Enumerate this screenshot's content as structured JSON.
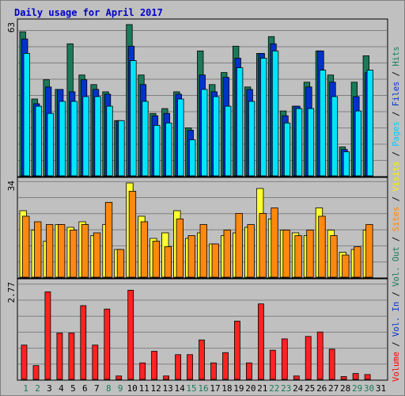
{
  "chart_data": {
    "type": "bar",
    "title": "Daily usage for April 2017",
    "categories": [
      "1",
      "2",
      "3",
      "4",
      "5",
      "6",
      "7",
      "8",
      "9",
      "10",
      "11",
      "12",
      "13",
      "14",
      "15",
      "16",
      "17",
      "18",
      "19",
      "20",
      "21",
      "22",
      "23",
      "24",
      "25",
      "26",
      "27",
      "28",
      "29",
      "30",
      "31"
    ],
    "weekend_days": [
      "1",
      "2",
      "8",
      "9",
      "15",
      "16",
      "22",
      "23",
      "29",
      "30"
    ],
    "panels": [
      {
        "name": "hits-pages-files",
        "ymax_label": "63",
        "ymax": 63,
        "ylabel_parts": [
          {
            "text": "Hits",
            "color": "#1b7a5a"
          },
          {
            "text": " / ",
            "color": "#000000"
          },
          {
            "text": "Files",
            "color": "#0033cc"
          },
          {
            "text": " / ",
            "color": "#000000"
          },
          {
            "text": "Pages",
            "color": "#00ccff"
          }
        ],
        "series": [
          {
            "name": "Hits",
            "color": "#1b7a5a",
            "values": [
              60,
              32,
              40,
              36,
              55,
              42,
              38,
              35,
              23,
              63,
              42,
              26,
              28,
              35,
              20,
              52,
              38,
              43,
              54,
              37,
              51,
              58,
              27,
              29,
              39,
              52,
              42,
              12,
              39,
              50,
              0
            ]
          },
          {
            "name": "Files",
            "color": "#0033cc",
            "values": [
              57,
              30,
              37,
              36,
              35,
              40,
              36,
              34,
              23,
              54,
              38,
              25,
              26,
              34,
              19,
              42,
              35,
              41,
              49,
              36,
              51,
              55,
              25,
              29,
              37,
              52,
              39,
              11,
              33,
              43,
              0
            ]
          },
          {
            "name": "Pages",
            "color": "#00e5ff",
            "values": [
              51,
              29,
              26,
              31,
              31,
              33,
              33,
              29,
              23,
              48,
              31,
              21,
              22,
              32,
              15,
              36,
              33,
              29,
              45,
              31,
              49,
              52,
              22,
              28,
              28,
              44,
              33,
              10,
              27,
              44,
              0
            ]
          }
        ]
      },
      {
        "name": "visits-sites",
        "ymax_label": "34",
        "ymax": 34,
        "ylabel_parts": [
          {
            "text": "Sites",
            "color": "#ff8800"
          },
          {
            "text": " / ",
            "color": "#000000"
          },
          {
            "text": "Visits",
            "color": "#ffee00"
          }
        ],
        "series": [
          {
            "name": "Visits",
            "color": "#ffff33",
            "values": [
              24,
              17,
              13,
              19,
              18,
              20,
              15,
              19,
              10,
              34,
              22,
              14,
              16,
              24,
              14,
              16,
              12,
              15,
              16,
              18,
              32,
              21,
              17,
              16,
              15,
              25,
              17,
              9,
              10,
              17,
              0
            ]
          },
          {
            "name": "Sites",
            "color": "#ff8811",
            "values": [
              22,
              20,
              19,
              19,
              17,
              19,
              16,
              27,
              10,
              31,
              20,
              13,
              11,
              21,
              15,
              19,
              12,
              17,
              23,
              19,
              23,
              25,
              17,
              15,
              17,
              22,
              15,
              8,
              11,
              19,
              0
            ]
          }
        ]
      },
      {
        "name": "volume",
        "ymax_label": "2.77",
        "ymax": 2.77,
        "ylabel_parts": [
          {
            "text": "Volume",
            "color": "#ff0000"
          }
        ],
        "series": [
          {
            "name": "Volume",
            "color": "#ff2222",
            "values": [
              1.0,
              0.4,
              2.55,
              1.35,
              1.35,
              2.15,
              1.0,
              2.05,
              0.1,
              2.6,
              0.48,
              0.82,
              0.1,
              0.72,
              0.72,
              1.15,
              0.48,
              0.78,
              1.7,
              0.48,
              2.2,
              0.85,
              1.18,
              0.1,
              1.25,
              1.38,
              0.88,
              0.08,
              0.17,
              0.14,
              0
            ]
          }
        ]
      }
    ],
    "right_label_parts": [
      {
        "text": "Volume",
        "color": "#ff0000"
      },
      {
        "text": " / ",
        "color": "#000000"
      },
      {
        "text": "Vol. In",
        "color": "#0033cc"
      },
      {
        "text": " / ",
        "color": "#000000"
      },
      {
        "text": "Vol. Out",
        "color": "#1b7a5a"
      },
      {
        "text": " / ",
        "color": "#000000"
      },
      {
        "text": "Sites",
        "color": "#ff8800"
      },
      {
        "text": " / ",
        "color": "#000000"
      },
      {
        "text": "Visits",
        "color": "#ffee00"
      },
      {
        "text": " / ",
        "color": "#000000"
      },
      {
        "text": "Pages",
        "color": "#00ccff"
      },
      {
        "text": " / ",
        "color": "#000000"
      },
      {
        "text": "Files",
        "color": "#0033cc"
      },
      {
        "text": " / ",
        "color": "#000000"
      },
      {
        "text": "Hits",
        "color": "#1b7a5a"
      }
    ],
    "grid": true,
    "weekday_label_color": "#000000",
    "weekend_label_color": "#1b7a5a",
    "title_color": "#0000cc"
  }
}
